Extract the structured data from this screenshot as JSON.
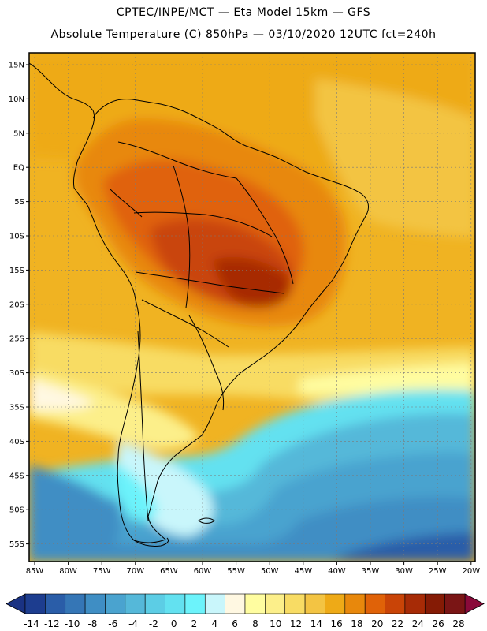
{
  "header": {
    "line1": "CPTEC/INPE/MCT —  Eta Model 15km — GFS",
    "line2": "Absolute Temperature (C) 850hPa — 03/10/2020 12UTC fct=240h"
  },
  "axes": {
    "lat_labels": [
      "15N",
      "10N",
      "5N",
      "EQ",
      "5S",
      "10S",
      "15S",
      "20S",
      "25S",
      "30S",
      "35S",
      "40S",
      "45S",
      "50S",
      "55S"
    ],
    "lon_labels": [
      "85W",
      "80W",
      "75W",
      "70W",
      "65W",
      "60W",
      "55W",
      "50W",
      "45W",
      "40W",
      "35W",
      "30W",
      "25W",
      "20W"
    ]
  },
  "colorbar": {
    "labels": [
      "-14",
      "-12",
      "-10",
      "-8",
      "-6",
      "-4",
      "-2",
      "0",
      "2",
      "4",
      "6",
      "8",
      "10",
      "12",
      "14",
      "16",
      "18",
      "20",
      "22",
      "24",
      "26",
      "28"
    ],
    "colors": [
      "#1d3d8f",
      "#2a5da8",
      "#3576b6",
      "#3f8ec4",
      "#4aa3cf",
      "#55b8d9",
      "#5ccde5",
      "#63e1f0",
      "#6cf3fb",
      "#c9f6fb",
      "#fff8e2",
      "#fffda0",
      "#fcef8a",
      "#f8dc64",
      "#f3c443",
      "#eeaa17",
      "#e8880c",
      "#e06208",
      "#c94407",
      "#a72b06",
      "#851b05",
      "#7a1515"
    ],
    "low_end_color": "#1a3283",
    "high_end_color": "#8a0a3a"
  },
  "colors": {
    "land_border": "#000000",
    "grid": "#7a7a7a"
  }
}
